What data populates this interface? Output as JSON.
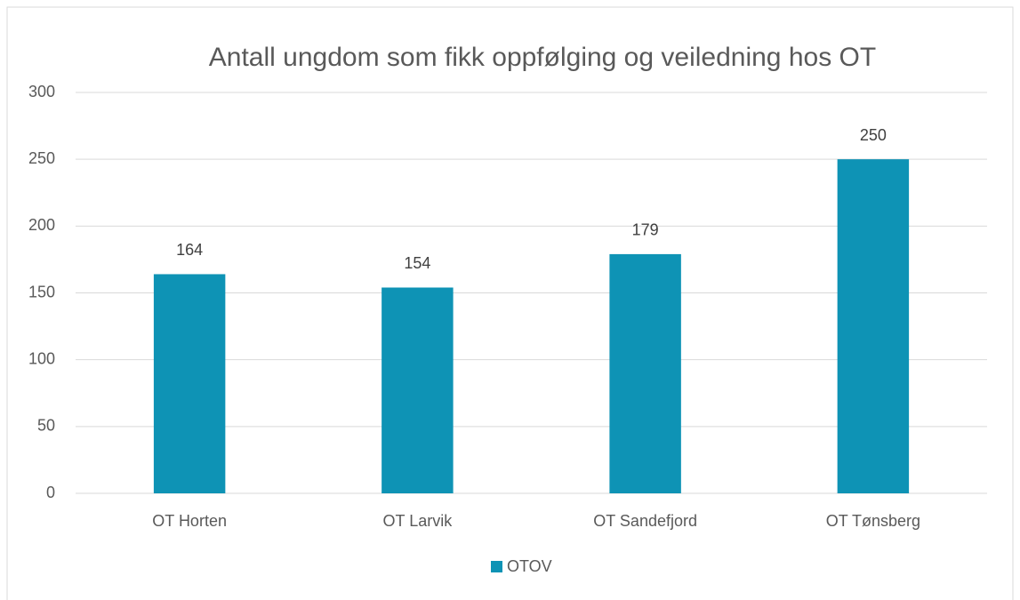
{
  "chart_data": {
    "type": "bar",
    "title": "Antall ungdom som fikk oppfølging og veiledning hos OT",
    "categories": [
      "OT Horten",
      "OT Larvik",
      "OT Sandefjord",
      "OT Tønsberg"
    ],
    "series": [
      {
        "name": "OTOV",
        "color": "#0e93b5",
        "values": [
          164,
          154,
          179,
          250
        ]
      }
    ],
    "ylim": [
      0,
      300
    ],
    "yticks": [
      0,
      50,
      100,
      150,
      200,
      250,
      300
    ],
    "grid": true,
    "legend": "bottom"
  }
}
